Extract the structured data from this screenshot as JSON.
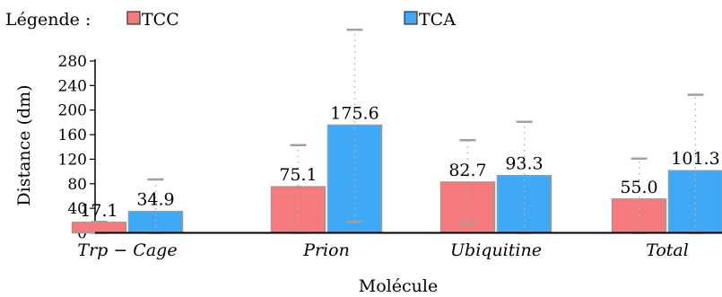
{
  "chart_data": {
    "type": "bar",
    "title": "",
    "xlabel": "Molécule",
    "ylabel": "Distance (dm)",
    "ylim": [
      0,
      280
    ],
    "yticks": [
      0,
      40,
      80,
      120,
      160,
      200,
      240,
      280
    ],
    "categories": [
      "Trp − Cage",
      "Prion",
      "Ubiquitine",
      "Total"
    ],
    "legend": {
      "title": "Légende :",
      "position": "top-left"
    },
    "series": [
      {
        "name": "TCC",
        "color": "#f47a7c",
        "values": [
          17.1,
          75.1,
          82.7,
          55.0
        ],
        "value_labels": [
          "17.1",
          "75.1",
          "82.7",
          "55.0"
        ],
        "error_low": [
          0,
          0,
          15,
          0
        ],
        "error_high": [
          18,
          143,
          151,
          121
        ]
      },
      {
        "name": "TCA",
        "color": "#3fa9f5",
        "values": [
          34.9,
          175.6,
          93.3,
          101.3
        ],
        "value_labels": [
          "34.9",
          "175.6",
          "93.3",
          "101.3"
        ],
        "error_low": [
          0,
          18,
          0,
          0
        ],
        "error_high": [
          87,
          331,
          181,
          225
        ]
      }
    ],
    "grid": false
  }
}
